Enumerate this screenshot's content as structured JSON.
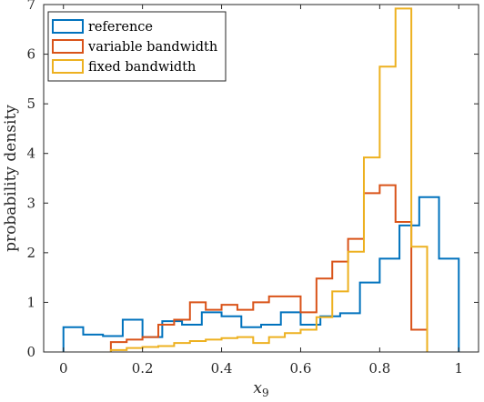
{
  "chart_data": {
    "type": "histogram",
    "xlabel": "x_9",
    "ylabel": "probability density",
    "xlim": [
      -0.05,
      1.05
    ],
    "ylim": [
      0,
      7
    ],
    "xticks": [
      0,
      0.2,
      0.4,
      0.6,
      0.8,
      1
    ],
    "xtick_labels": [
      "0",
      "0.2",
      "0.4",
      "0.6",
      "0.8",
      "1"
    ],
    "yticks": [
      0,
      1,
      2,
      3,
      4,
      5,
      6,
      7
    ],
    "ytick_labels": [
      "0",
      "1",
      "2",
      "3",
      "4",
      "5",
      "6",
      "7"
    ],
    "grid": false,
    "legend_position": "top-left",
    "series": [
      {
        "name": "reference",
        "color": "#0072BD",
        "edges": [
          0,
          0.05,
          0.1,
          0.15,
          0.2,
          0.25,
          0.3,
          0.35,
          0.4,
          0.45,
          0.5,
          0.55,
          0.6,
          0.65,
          0.7,
          0.75,
          0.8,
          0.85,
          0.9,
          0.95,
          1.0
        ],
        "values": [
          0.5,
          0.35,
          0.32,
          0.65,
          0.3,
          0.62,
          0.55,
          0.8,
          0.72,
          0.5,
          0.55,
          0.8,
          0.55,
          0.72,
          0.78,
          1.4,
          1.88,
          2.55,
          3.12,
          1.88
        ]
      },
      {
        "name": "variable bandwidth",
        "color": "#D95319",
        "edges": [
          0.12,
          0.16,
          0.2,
          0.24,
          0.28,
          0.32,
          0.36,
          0.4,
          0.44,
          0.48,
          0.52,
          0.56,
          0.6,
          0.64,
          0.68,
          0.72,
          0.76,
          0.8,
          0.84,
          0.88,
          0.92
        ],
        "values": [
          0.2,
          0.25,
          0.3,
          0.55,
          0.65,
          1.0,
          0.85,
          0.95,
          0.85,
          1.0,
          1.12,
          1.12,
          0.8,
          1.48,
          1.82,
          2.28,
          3.2,
          3.36,
          2.62,
          0.45
        ]
      },
      {
        "name": "fixed bandwidth",
        "color": "#EDB120",
        "edges": [
          0.12,
          0.16,
          0.2,
          0.24,
          0.28,
          0.32,
          0.36,
          0.4,
          0.44,
          0.48,
          0.52,
          0.56,
          0.6,
          0.64,
          0.68,
          0.72,
          0.76,
          0.8,
          0.84,
          0.88,
          0.92
        ],
        "values": [
          0.04,
          0.08,
          0.1,
          0.12,
          0.18,
          0.22,
          0.25,
          0.28,
          0.3,
          0.18,
          0.3,
          0.38,
          0.45,
          0.7,
          1.22,
          2.02,
          3.92,
          5.75,
          6.92,
          2.12
        ]
      }
    ]
  }
}
